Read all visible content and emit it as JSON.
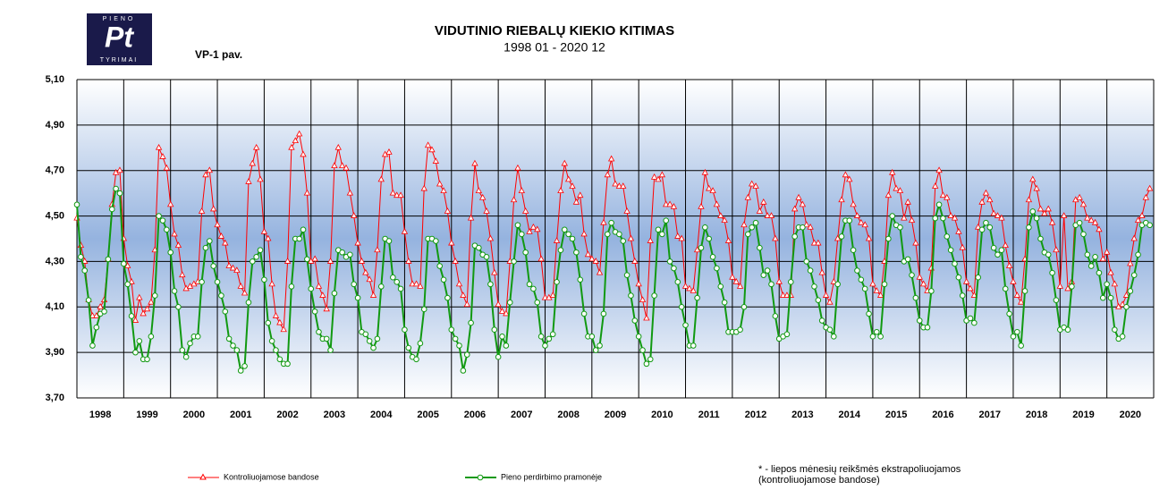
{
  "logo": {
    "top": "PIENO",
    "mark": "Pt",
    "bottom": "TYRIMAI"
  },
  "figure_label": "VP-1 pav.",
  "note": [
    "* - liepos mėnesių reikšmės ekstrapoliuojamos",
    "(kontroliuojamose bandose)"
  ],
  "chart_data": {
    "type": "line",
    "title": "VIDUTINIO RIEBALŲ KIEKIO KITIMAS",
    "subtitle": "1998 01 - 2020 12",
    "categories": [
      "1998",
      "1999",
      "2000",
      "2001",
      "2002",
      "2003",
      "2004",
      "2005",
      "2006",
      "2007",
      "2008",
      "2009",
      "2010",
      "2011",
      "2012",
      "2013",
      "2014",
      "2015",
      "2016",
      "2017",
      "2018",
      "2019",
      "2020"
    ],
    "ylim": [
      3.7,
      5.1
    ],
    "yticks": [
      {
        "value": 3.7,
        "label": "3,70"
      },
      {
        "value": 3.9,
        "label": "3,90"
      },
      {
        "value": 4.1,
        "label": "4,10"
      },
      {
        "value": 4.3,
        "label": "4,30"
      },
      {
        "value": 4.5,
        "label": "4,50"
      },
      {
        "value": 4.7,
        "label": "4,70"
      },
      {
        "value": 4.9,
        "label": "4,90"
      },
      {
        "value": 5.1,
        "label": "5,10"
      }
    ],
    "grid": true,
    "legend": "bottom",
    "series": [
      {
        "name": "Kontroliuojamose bandose",
        "color": "#ff0000",
        "marker": "triangle",
        "values": [
          [
            4.49,
            4.37,
            4.3,
            4.13,
            4.06,
            4.06,
            4.1,
            4.13,
            4.31,
            4.55,
            4.69,
            4.7
          ],
          [
            4.4,
            4.28,
            4.21,
            4.04,
            4.14,
            4.07,
            4.09,
            4.12,
            4.35,
            4.8,
            4.76,
            4.71
          ],
          [
            4.55,
            4.42,
            4.37,
            4.24,
            4.18,
            4.19,
            4.2,
            4.21,
            4.52,
            4.68,
            4.7,
            4.53
          ],
          [
            4.46,
            4.41,
            4.38,
            4.28,
            4.27,
            4.26,
            4.19,
            4.16,
            4.65,
            4.73,
            4.8,
            4.66
          ],
          [
            4.43,
            4.4,
            4.2,
            4.06,
            4.03,
            4.0,
            4.3,
            4.8,
            4.83,
            4.86,
            4.77,
            4.6
          ],
          [
            4.3,
            4.31,
            4.19,
            4.15,
            4.09,
            4.3,
            4.72,
            4.8,
            4.72,
            4.71,
            4.6,
            4.5
          ],
          [
            4.38,
            4.3,
            4.25,
            4.22,
            4.15,
            4.35,
            4.66,
            4.77,
            4.78,
            4.6,
            4.59,
            4.59
          ],
          [
            4.43,
            4.3,
            4.2,
            4.2,
            4.19,
            4.62,
            4.81,
            4.79,
            4.74,
            4.64,
            4.61,
            4.52
          ],
          [
            4.38,
            4.3,
            4.2,
            4.15,
            4.11,
            4.49,
            4.73,
            4.61,
            4.58,
            4.52,
            4.4,
            4.25
          ],
          [
            4.11,
            4.08,
            4.07,
            4.3,
            4.57,
            4.71,
            4.61,
            4.52,
            4.43,
            4.45,
            4.44,
            4.31
          ],
          [
            4.14,
            4.14,
            4.15,
            4.39,
            4.61,
            4.73,
            4.66,
            4.63,
            4.56,
            4.59,
            4.42,
            4.33
          ],
          [
            4.31,
            4.3,
            4.25,
            4.47,
            4.68,
            4.75,
            4.64,
            4.63,
            4.63,
            4.52,
            4.4,
            4.3
          ],
          [
            4.2,
            4.13,
            4.05,
            4.39,
            4.67,
            4.66,
            4.68,
            4.55,
            4.55,
            4.54,
            4.41,
            4.4
          ],
          [
            4.19,
            4.18,
            4.17,
            4.35,
            4.54,
            4.69,
            4.62,
            4.61,
            4.55,
            4.5,
            4.48,
            4.39
          ],
          [
            4.23,
            4.21,
            4.19,
            4.46,
            4.58,
            4.64,
            4.63,
            4.52,
            4.56,
            4.5,
            4.5,
            4.4
          ],
          [
            4.21,
            4.15,
            4.15,
            4.15,
            4.53,
            4.58,
            4.55,
            4.46,
            4.45,
            4.38,
            4.38,
            4.25
          ],
          [
            4.15,
            4.12,
            4.21,
            4.4,
            4.57,
            4.68,
            4.66,
            4.55,
            4.5,
            4.47,
            4.46,
            4.4
          ],
          [
            4.2,
            4.17,
            4.15,
            4.3,
            4.59,
            4.69,
            4.62,
            4.61,
            4.49,
            4.56,
            4.48,
            4.38
          ],
          [
            4.23,
            4.2,
            4.17,
            4.27,
            4.63,
            4.7,
            4.59,
            4.58,
            4.5,
            4.49,
            4.43,
            4.36
          ],
          [
            4.21,
            4.18,
            4.15,
            4.45,
            4.56,
            4.6,
            4.57,
            4.51,
            4.5,
            4.49,
            4.37,
            4.28
          ],
          [
            4.21,
            4.15,
            4.12,
            4.31,
            4.57,
            4.66,
            4.62,
            4.53,
            4.51,
            4.53,
            4.47,
            4.35
          ],
          [
            4.19,
            4.5,
            4.18,
            4.21,
            4.57,
            4.58,
            4.55,
            4.49,
            4.48,
            4.47,
            4.44,
            4.31
          ],
          [
            4.34,
            4.25,
            4.2,
            4.1,
            4.11,
            4.15,
            4.29,
            4.4,
            4.48,
            4.5,
            4.58,
            4.62
          ]
        ]
      },
      {
        "name": "Pieno perdirbimo pramonėje",
        "color": "#119911",
        "marker": "circle",
        "values": [
          [
            4.55,
            4.32,
            4.26,
            4.13,
            3.93,
            4.01,
            4.07,
            4.08,
            4.31,
            4.53,
            4.62,
            4.6
          ],
          [
            4.29,
            4.2,
            4.06,
            3.9,
            3.95,
            3.87,
            3.87,
            3.97,
            4.15,
            4.5,
            4.48,
            4.44
          ],
          [
            4.34,
            4.17,
            4.1,
            3.91,
            3.88,
            3.94,
            3.97,
            3.97,
            4.21,
            4.36,
            4.39,
            4.28
          ],
          [
            4.21,
            4.15,
            4.08,
            3.96,
            3.93,
            3.91,
            3.82,
            3.84,
            4.12,
            4.3,
            4.32,
            4.35
          ],
          [
            4.22,
            4.03,
            3.95,
            3.91,
            3.87,
            3.85,
            3.85,
            4.19,
            4.4,
            4.4,
            4.44,
            4.31
          ],
          [
            4.18,
            4.08,
            3.99,
            3.96,
            3.96,
            3.91,
            4.16,
            4.35,
            4.34,
            4.32,
            4.33,
            4.2
          ],
          [
            4.14,
            3.99,
            3.98,
            3.95,
            3.92,
            3.96,
            4.19,
            4.4,
            4.39,
            4.23,
            4.21,
            4.18
          ],
          [
            4.0,
            3.92,
            3.88,
            3.87,
            3.94,
            4.09,
            4.4,
            4.4,
            4.39,
            4.28,
            4.22,
            4.14
          ],
          [
            4.0,
            3.96,
            3.93,
            3.82,
            3.89,
            4.03,
            4.37,
            4.36,
            4.33,
            4.32,
            4.2,
            4.0
          ],
          [
            3.88,
            3.97,
            3.93,
            4.12,
            4.3,
            4.46,
            4.42,
            4.34,
            4.2,
            4.18,
            4.12,
            3.97
          ],
          [
            3.93,
            3.96,
            3.98,
            4.21,
            4.35,
            4.44,
            4.42,
            4.4,
            4.34,
            4.22,
            4.07,
            3.97
          ],
          [
            3.97,
            3.91,
            3.93,
            4.07,
            4.42,
            4.47,
            4.43,
            4.42,
            4.39,
            4.24,
            4.15,
            4.04
          ],
          [
            3.97,
            3.91,
            3.85,
            3.87,
            4.15,
            4.44,
            4.42,
            4.48,
            4.3,
            4.27,
            4.21,
            4.1
          ],
          [
            4.02,
            3.93,
            3.93,
            4.14,
            4.36,
            4.45,
            4.4,
            4.32,
            4.27,
            4.19,
            4.12,
            3.99
          ],
          [
            3.99,
            3.99,
            4.0,
            4.1,
            4.42,
            4.45,
            4.47,
            4.36,
            4.24,
            4.26,
            4.2,
            4.06
          ],
          [
            3.96,
            3.97,
            3.98,
            4.21,
            4.41,
            4.45,
            4.45,
            4.3,
            4.26,
            4.19,
            4.13,
            4.04
          ],
          [
            4.01,
            4.0,
            3.97,
            4.2,
            4.41,
            4.48,
            4.48,
            4.35,
            4.26,
            4.22,
            4.18,
            4.07
          ],
          [
            3.97,
            3.99,
            3.97,
            4.2,
            4.4,
            4.5,
            4.46,
            4.45,
            4.3,
            4.31,
            4.24,
            4.14
          ],
          [
            4.04,
            4.01,
            4.01,
            4.17,
            4.49,
            4.55,
            4.49,
            4.41,
            4.35,
            4.29,
            4.23,
            4.15
          ],
          [
            4.04,
            4.05,
            4.03,
            4.23,
            4.44,
            4.47,
            4.45,
            4.36,
            4.33,
            4.35,
            4.18,
            4.07
          ],
          [
            3.97,
            3.99,
            3.93,
            4.17,
            4.45,
            4.52,
            4.49,
            4.4,
            4.34,
            4.33,
            4.25,
            4.13
          ],
          [
            4.0,
            4.01,
            4.0,
            4.19,
            4.46,
            4.47,
            4.42,
            4.33,
            4.28,
            4.32,
            4.25,
            4.14
          ],
          [
            4.2,
            4.14,
            4.0,
            3.96,
            3.97,
            4.1,
            4.17,
            4.24,
            4.33,
            4.46,
            4.47,
            4.46
          ]
        ]
      }
    ]
  }
}
